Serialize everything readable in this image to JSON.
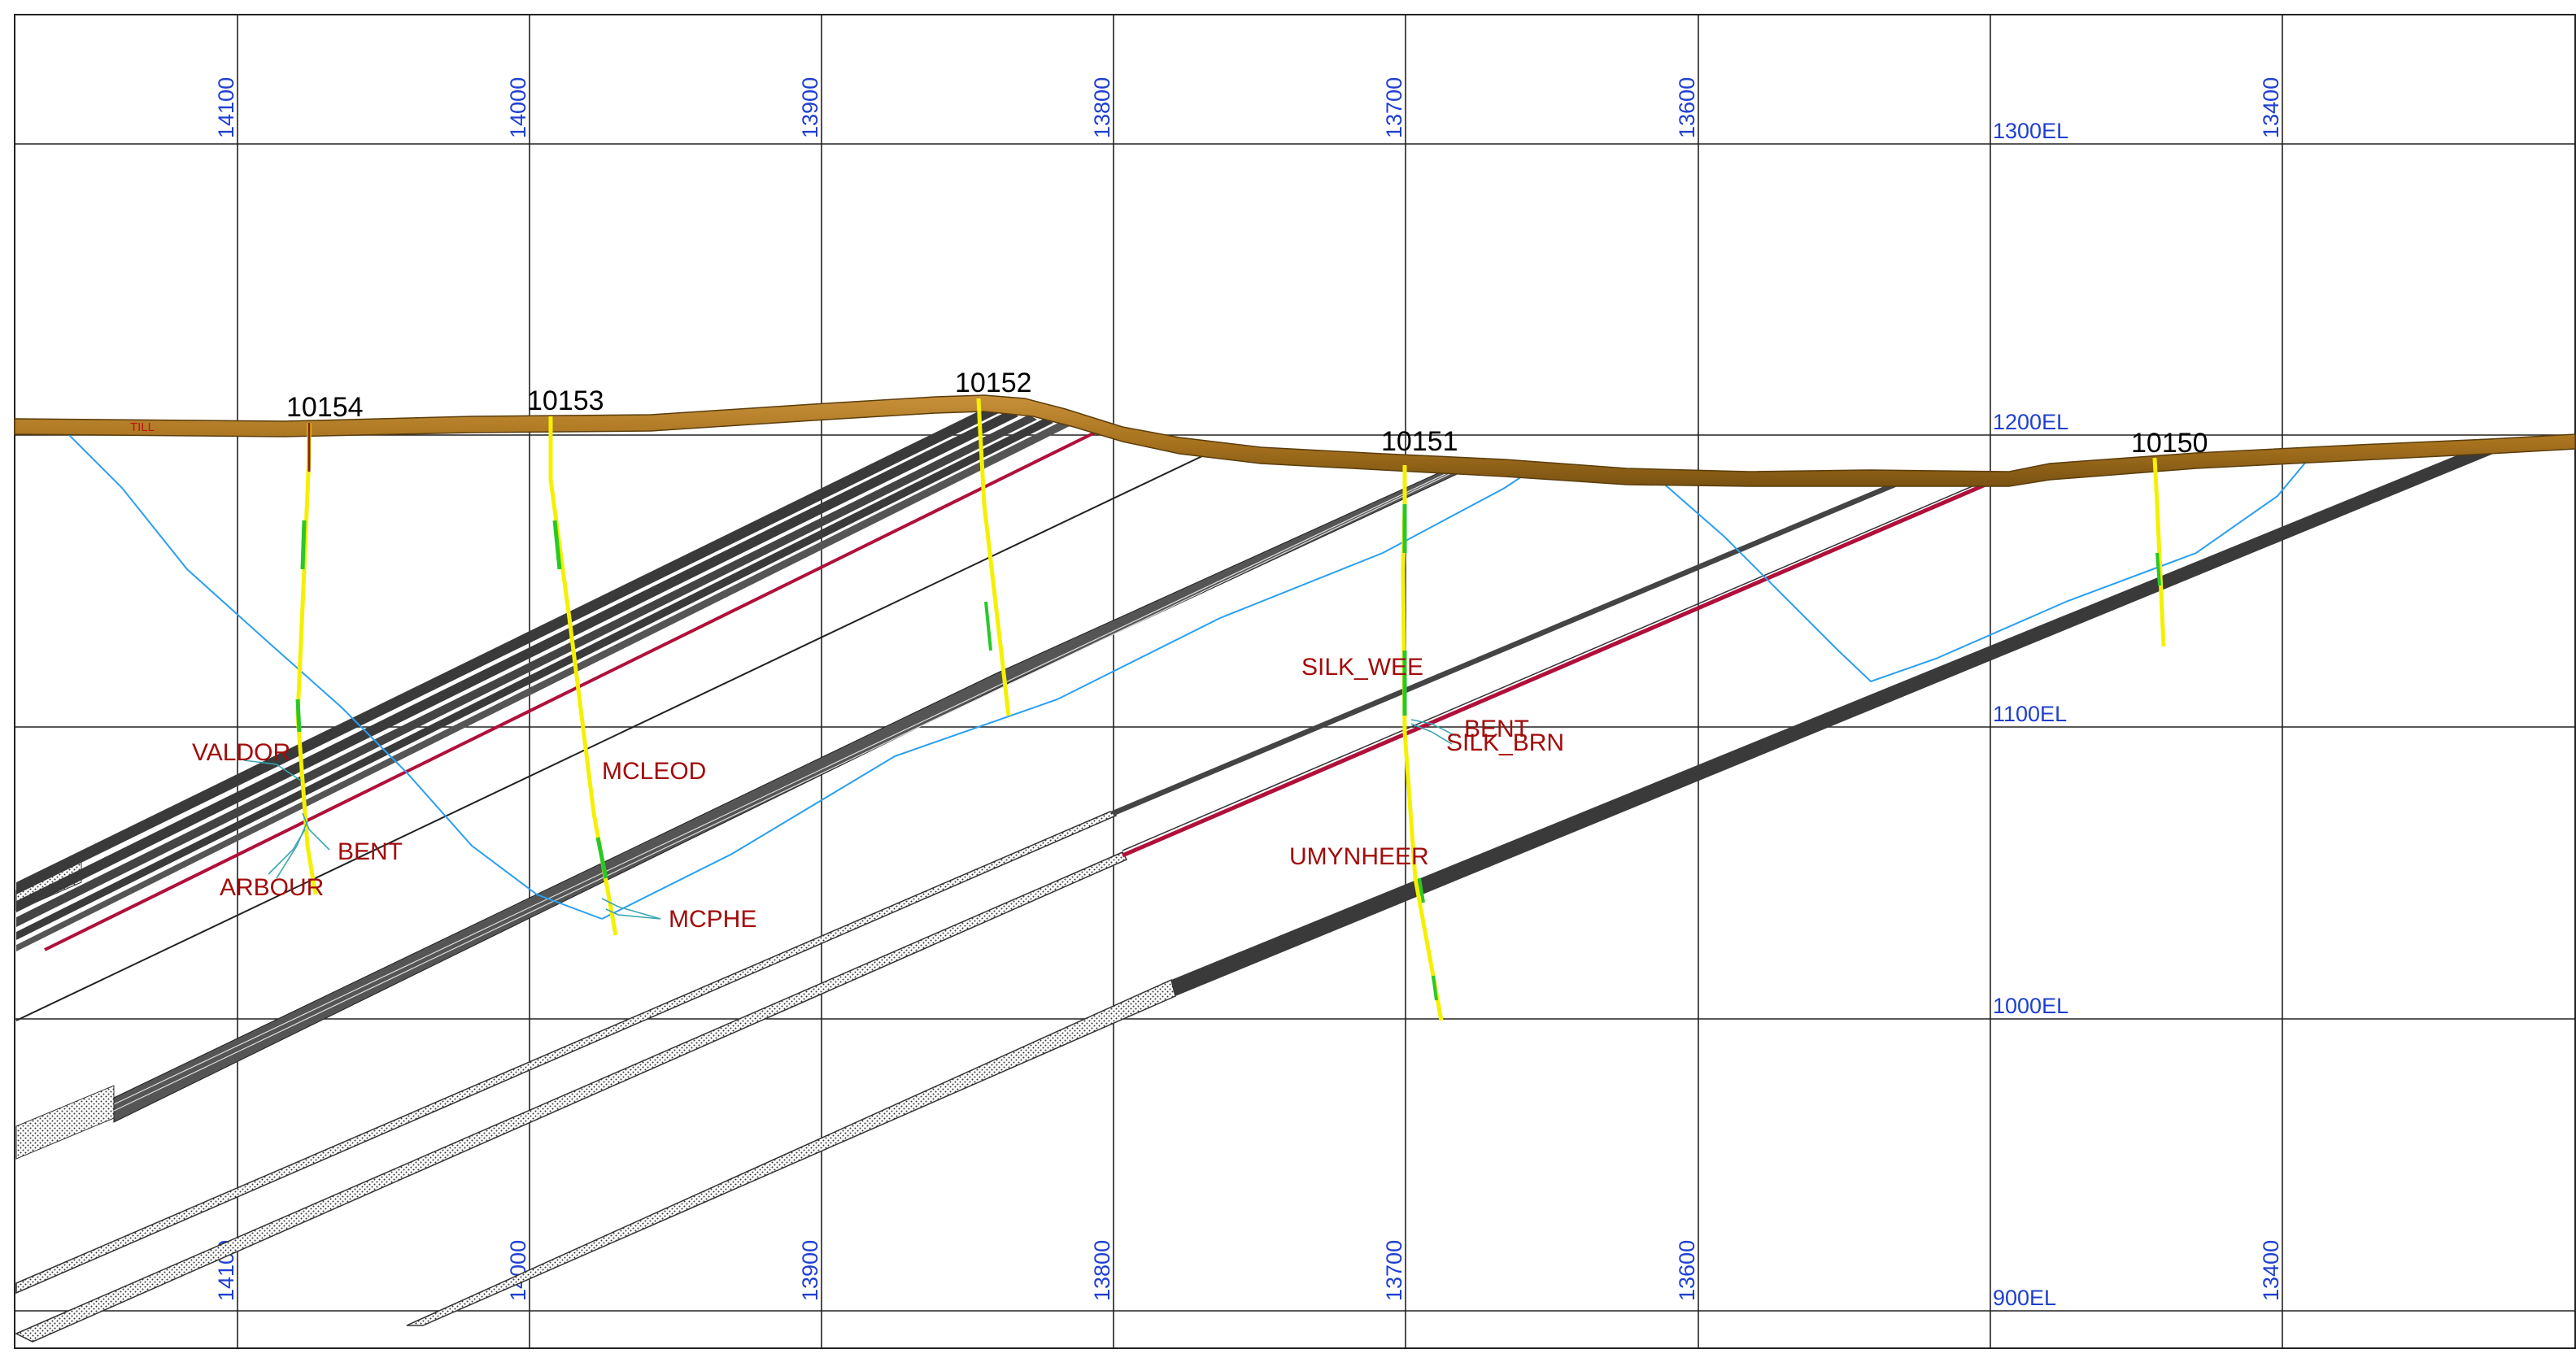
{
  "grid": {
    "northings": [
      "14100",
      "14000",
      "13900",
      "13800",
      "13700",
      "13600",
      "13500",
      "13400"
    ],
    "elevations": [
      "1300EL",
      "1200EL",
      "1100EL",
      "1000EL",
      "900EL"
    ]
  },
  "overburden": {
    "label": "TILL",
    "color": "#a9741f"
  },
  "drillholes": [
    {
      "id": "10154"
    },
    {
      "id": "10153"
    },
    {
      "id": "10152"
    },
    {
      "id": "10151"
    },
    {
      "id": "10150"
    }
  ],
  "units": {
    "valdor": "VALDOR",
    "bent_west": "BENT",
    "arbour": "ARBOUR",
    "mcleod": "MCLEOD",
    "mcphe": "MCPHE",
    "silk_wee": "SILK_WEE",
    "bent_east": "BENT",
    "silk_brn": "SILK_BRN",
    "umynheer": "UMYNHEER"
  },
  "colors": {
    "grid_label": "#1f3fd0",
    "unit_label": "#a30b0b",
    "vein_dark": "#3a3a3a",
    "vein_red": "#b0103a",
    "contact_blue": "#2a9ff0",
    "hole_trace": "#f5f000"
  }
}
